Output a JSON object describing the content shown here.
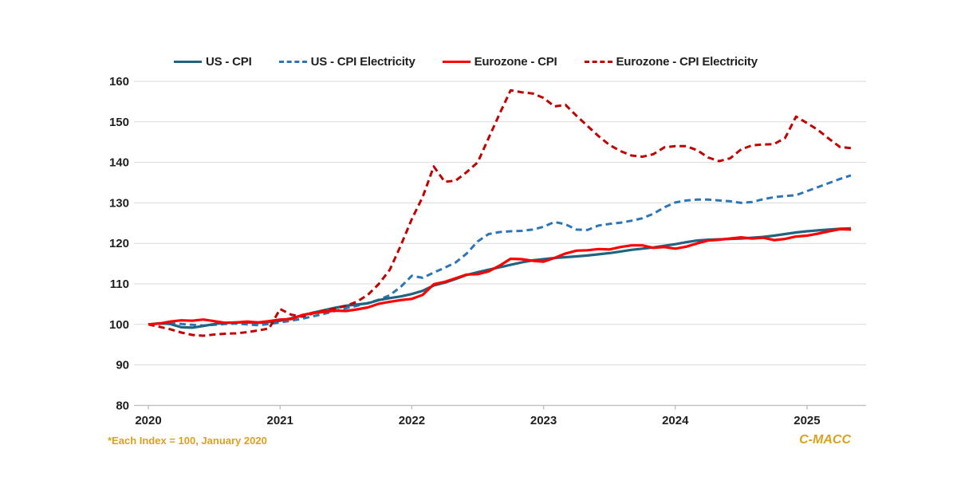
{
  "chart_data": {
    "type": "line",
    "title": "",
    "footnote": "*Each Index = 100, January 2020",
    "brand": "C-MACC",
    "x_unit": "month",
    "x_start": "2020-01",
    "x_end": "2025-05",
    "x_ticks": [
      "2020",
      "2021",
      "2022",
      "2023",
      "2024",
      "2025"
    ],
    "y_ticks": [
      160,
      150,
      140,
      130,
      120,
      110,
      100,
      90,
      80
    ],
    "ylim": [
      80,
      160
    ],
    "grid": "horizontal",
    "legend_position": "top",
    "colors": {
      "grid": "#d9d9d9",
      "axis": "#bfbfbf",
      "text": "#1f1f1f",
      "accent_gold": "#d9a21b"
    },
    "series": [
      {
        "name": "US - CPI",
        "color": "#1f6582",
        "dash": "solid",
        "values": [
          100.0,
          100.3,
          100.1,
          99.3,
          99.2,
          99.6,
          100.1,
          100.4,
          100.5,
          100.5,
          100.4,
          100.6,
          100.9,
          101.5,
          102.2,
          102.9,
          103.5,
          104.1,
          104.6,
          104.9,
          105.2,
          106.0,
          106.5,
          106.9,
          107.5,
          108.3,
          109.6,
          110.3,
          111.2,
          112.2,
          112.9,
          113.5,
          114.1,
          114.7,
          115.3,
          115.8,
          116.1,
          116.4,
          116.6,
          116.8,
          117.0,
          117.3,
          117.6,
          118.0,
          118.4,
          118.7,
          119.0,
          119.4,
          119.8,
          120.3,
          120.7,
          120.9,
          121.0,
          121.1,
          121.2,
          121.4,
          121.6,
          121.9,
          122.3,
          122.7,
          123.0,
          123.2,
          123.4,
          123.6,
          123.7
        ]
      },
      {
        "name": "US - CPI Electricity",
        "color": "#2e75b6",
        "dash": "dashed",
        "values": [
          100.0,
          100.1,
          100.3,
          100.1,
          99.9,
          99.7,
          99.9,
          100.1,
          100.2,
          100.0,
          99.8,
          100.1,
          100.5,
          100.9,
          101.4,
          102.0,
          102.6,
          103.3,
          104.0,
          104.6,
          105.3,
          106.1,
          107.2,
          109.3,
          112.0,
          111.5,
          112.8,
          114.0,
          115.3,
          117.5,
          120.5,
          122.3,
          122.8,
          123.0,
          123.1,
          123.4,
          124.1,
          125.3,
          124.7,
          123.4,
          123.3,
          124.4,
          124.8,
          125.1,
          125.6,
          126.2,
          127.3,
          128.9,
          130.1,
          130.6,
          130.8,
          130.8,
          130.6,
          130.4,
          130.0,
          130.2,
          130.9,
          131.4,
          131.7,
          131.9,
          132.9,
          133.9,
          134.9,
          135.9,
          136.8
        ]
      },
      {
        "name": "Eurozone - CPI",
        "color": "#fe0000",
        "dash": "solid",
        "values": [
          100.0,
          100.2,
          100.7,
          101.0,
          100.9,
          101.2,
          100.8,
          100.4,
          100.5,
          100.7,
          100.5,
          100.8,
          101.2,
          101.3,
          102.3,
          102.8,
          103.1,
          103.4,
          103.3,
          103.7,
          104.2,
          105.1,
          105.6,
          106.0,
          106.3,
          107.3,
          109.9,
          110.5,
          111.4,
          112.3,
          112.4,
          113.1,
          114.5,
          116.2,
          116.1,
          115.7,
          115.5,
          116.4,
          117.5,
          118.2,
          118.3,
          118.6,
          118.5,
          119.1,
          119.5,
          119.5,
          118.9,
          119.1,
          118.7,
          119.2,
          120.0,
          120.7,
          120.9,
          121.2,
          121.5,
          121.2,
          121.4,
          120.8,
          121.1,
          121.7,
          121.9,
          122.4,
          123.0,
          123.5,
          123.4
        ]
      },
      {
        "name": "Eurozone - CPI Electricity",
        "color": "#c00000",
        "dash": "dashed",
        "values": [
          100.0,
          99.4,
          98.8,
          98.0,
          97.4,
          97.2,
          97.5,
          97.7,
          97.8,
          98.1,
          98.5,
          99.0,
          103.8,
          102.4,
          101.9,
          102.7,
          103.4,
          103.9,
          104.6,
          105.6,
          107.3,
          110.0,
          113.5,
          119.5,
          126.0,
          131.5,
          139.0,
          135.2,
          135.5,
          137.6,
          140.0,
          146.0,
          152.0,
          157.8,
          157.3,
          157.0,
          155.9,
          153.8,
          154.2,
          151.5,
          149.0,
          146.5,
          144.3,
          142.8,
          141.7,
          141.4,
          142.0,
          143.7,
          144.0,
          144.0,
          143.0,
          141.2,
          140.3,
          141.0,
          143.2,
          144.2,
          144.4,
          144.5,
          146.0,
          151.3,
          149.7,
          148.0,
          145.8,
          143.8,
          143.5
        ]
      }
    ]
  }
}
